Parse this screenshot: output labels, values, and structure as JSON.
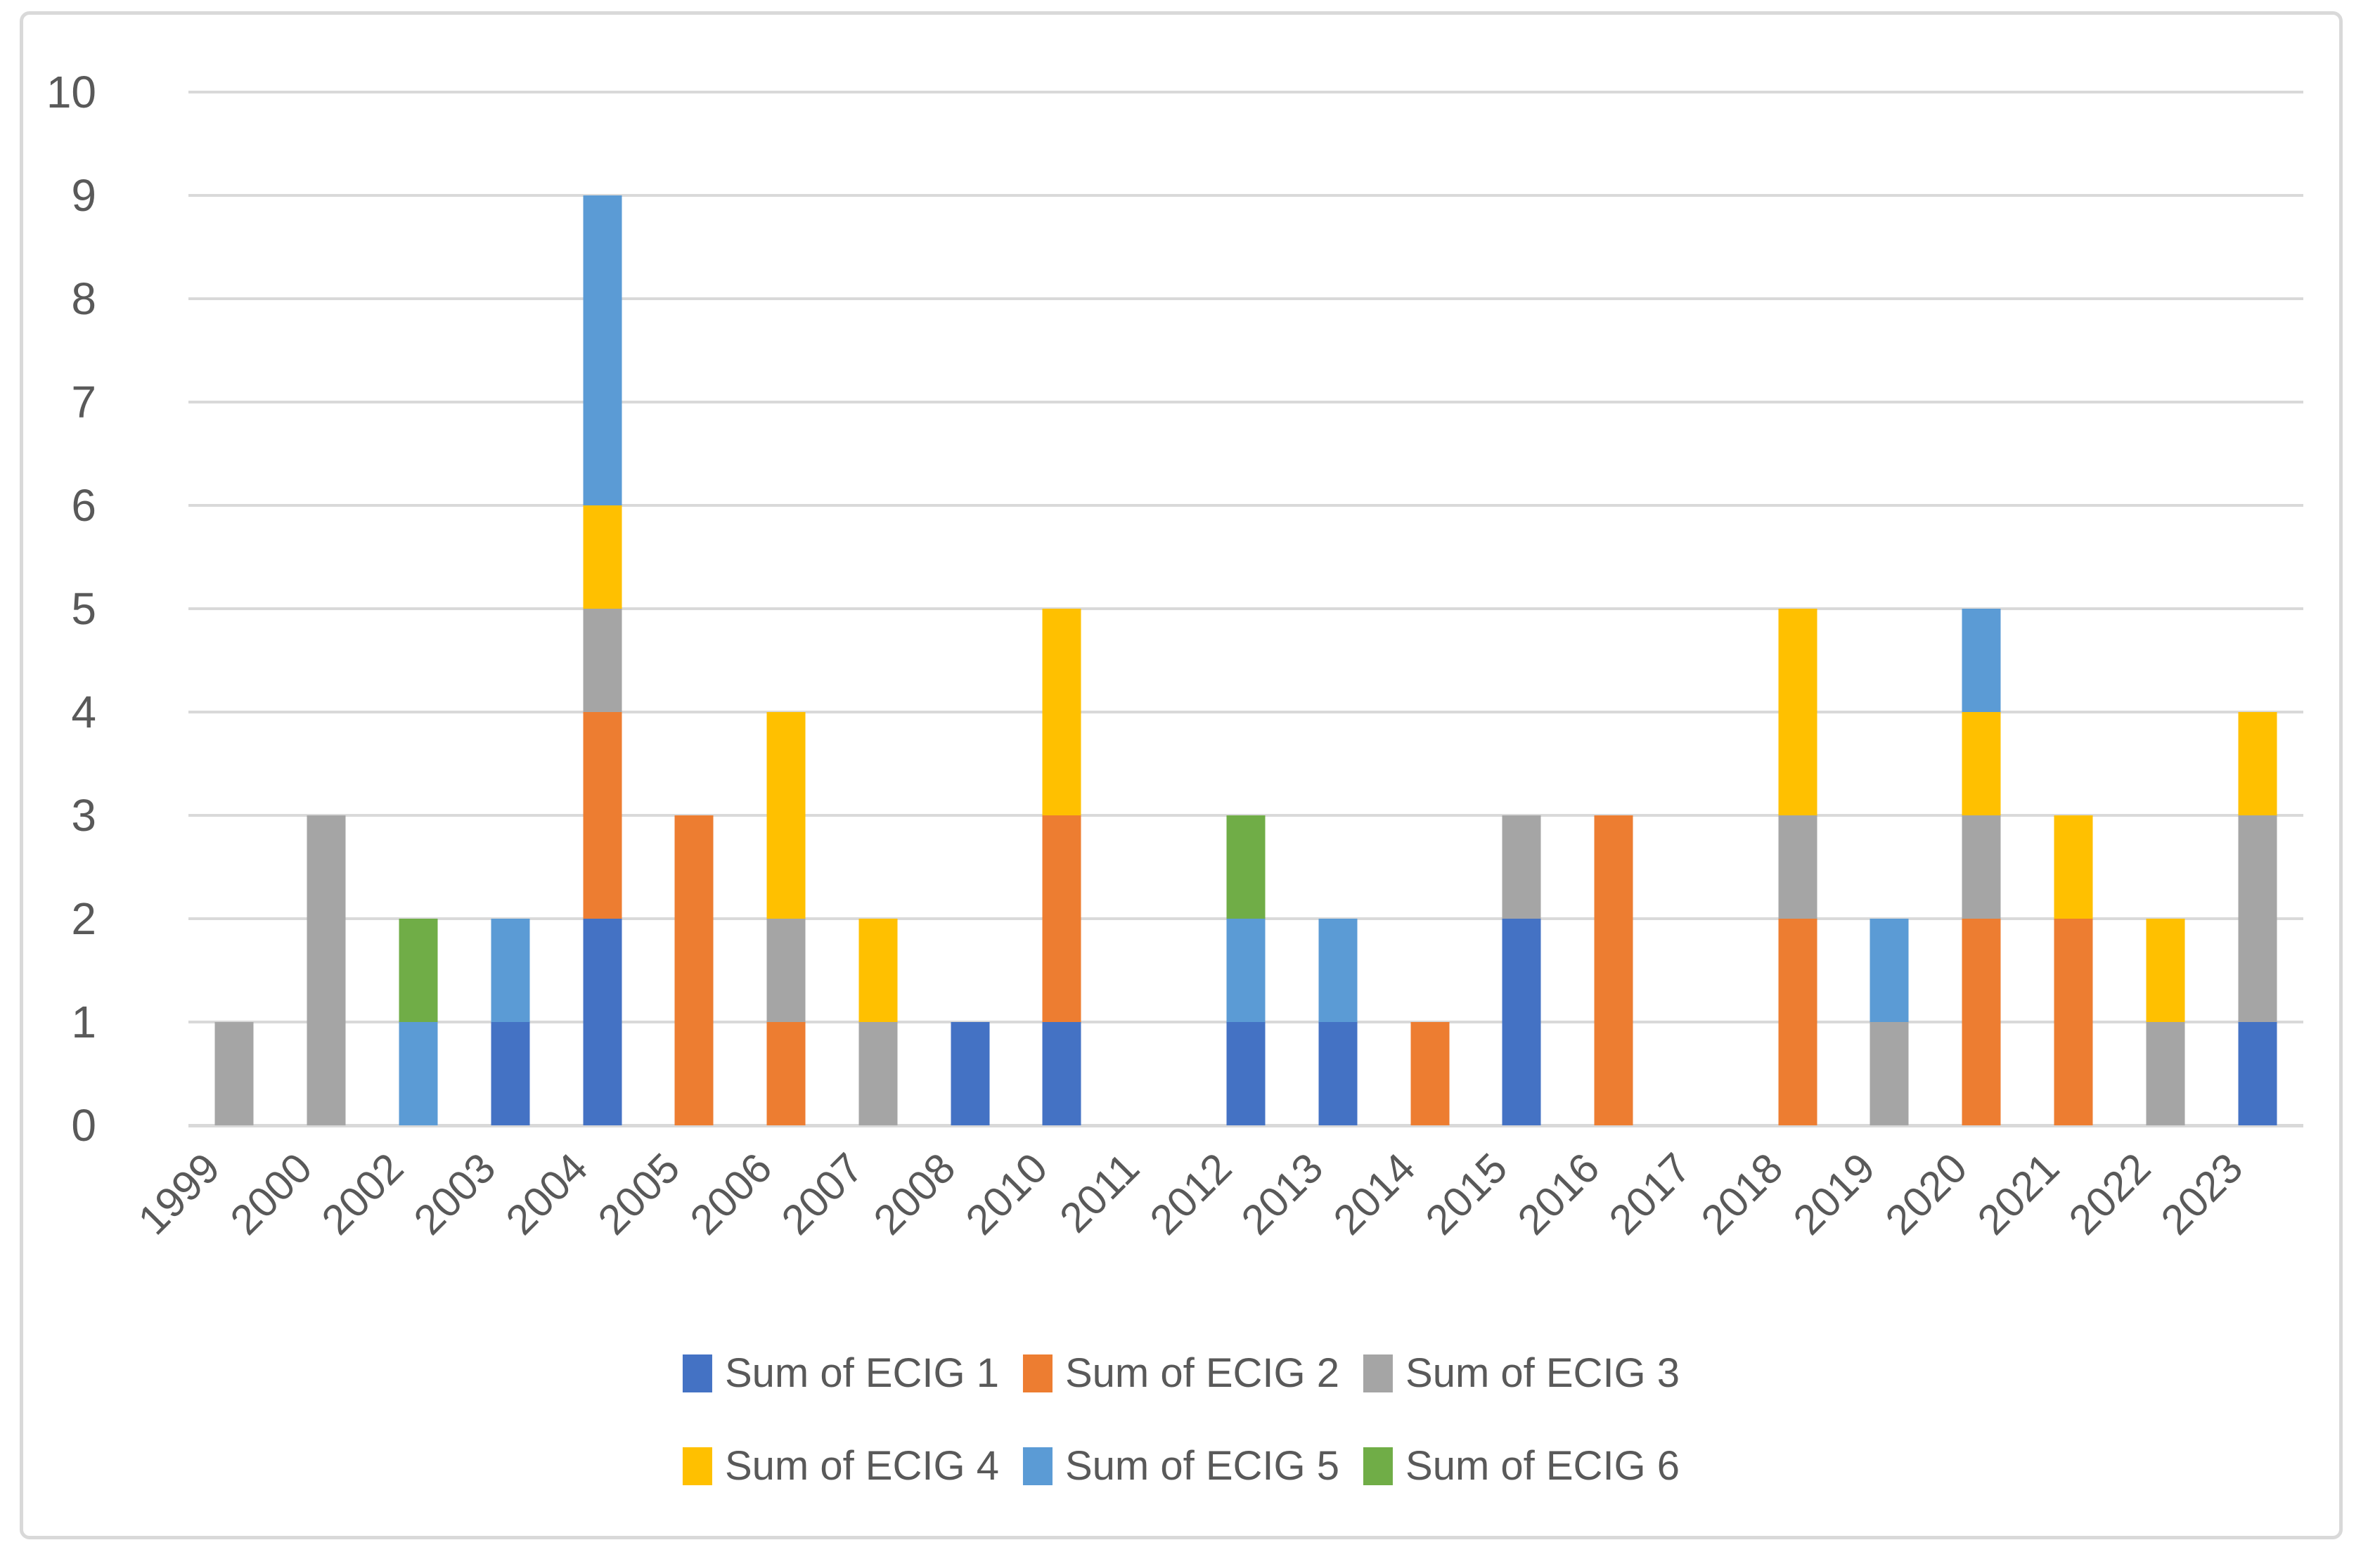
{
  "chart_data": {
    "type": "bar",
    "stacked": true,
    "title": "",
    "xlabel": "",
    "ylabel": "",
    "categories": [
      "1999",
      "2000",
      "2002",
      "2003",
      "2004",
      "2005",
      "2006",
      "2007",
      "2008",
      "2010",
      "2011",
      "2012",
      "2013",
      "2014",
      "2015",
      "2016",
      "2017",
      "2018",
      "2019",
      "2020",
      "2021",
      "2022",
      "2023"
    ],
    "series": [
      {
        "name": "Sum of ECIG 1",
        "color": "#4472C4",
        "values": [
          0,
          0,
          0,
          1,
          2,
          0,
          0,
          0,
          1,
          1,
          0,
          1,
          1,
          0,
          2,
          0,
          0,
          0,
          0,
          0,
          0,
          0,
          1
        ]
      },
      {
        "name": "Sum of ECIG 2",
        "color": "#ED7D31",
        "values": [
          0,
          0,
          0,
          0,
          2,
          3,
          1,
          0,
          0,
          2,
          0,
          0,
          0,
          1,
          0,
          3,
          0,
          2,
          0,
          2,
          2,
          0,
          0
        ]
      },
      {
        "name": "Sum of ECIG 3",
        "color": "#A5A5A5",
        "values": [
          1,
          3,
          0,
          0,
          1,
          0,
          1,
          1,
          0,
          0,
          0,
          0,
          0,
          0,
          1,
          0,
          0,
          1,
          1,
          1,
          0,
          1,
          2
        ]
      },
      {
        "name": "Sum of ECIG 4",
        "color": "#FFC000",
        "values": [
          0,
          0,
          0,
          0,
          1,
          0,
          2,
          1,
          0,
          2,
          0,
          0,
          0,
          0,
          0,
          0,
          0,
          2,
          0,
          1,
          1,
          1,
          1
        ]
      },
      {
        "name": "Sum of ECIG 5",
        "color": "#5B9BD5",
        "values": [
          0,
          0,
          1,
          1,
          3,
          0,
          0,
          0,
          0,
          0,
          0,
          1,
          1,
          0,
          0,
          0,
          0,
          0,
          1,
          1,
          0,
          0,
          0
        ]
      },
      {
        "name": "Sum of ECIG 6",
        "color": "#70AD47",
        "values": [
          0,
          0,
          1,
          0,
          0,
          0,
          0,
          0,
          0,
          0,
          0,
          1,
          0,
          0,
          0,
          0,
          0,
          0,
          0,
          0,
          0,
          0,
          0
        ]
      }
    ],
    "ylim": [
      0,
      10
    ],
    "yticks": [
      0,
      1,
      2,
      3,
      4,
      5,
      6,
      7,
      8,
      9,
      10
    ],
    "grid": true,
    "legend_position": "bottom",
    "legend_rows": [
      [
        "Sum of ECIG 1",
        "Sum of ECIG 2",
        "Sum of ECIG 3"
      ],
      [
        "Sum of ECIG 4",
        "Sum of ECIG 5",
        "Sum of ECIG 6"
      ]
    ],
    "style": {
      "text_color": "#595959",
      "grid_color": "#D9D9D9",
      "border_color": "#D9D9D9",
      "background": "#FFFFFF"
    }
  }
}
